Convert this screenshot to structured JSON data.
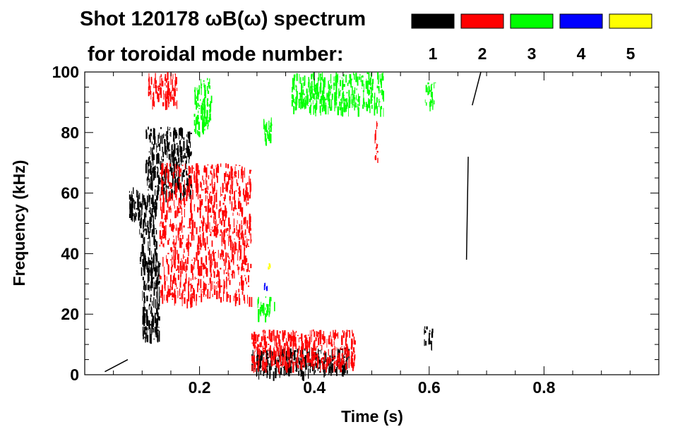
{
  "chart_data": {
    "type": "scatter",
    "title_line1": "Shot 120178 ωB(ω) spectrum",
    "title_line2": "for toroidal mode number:",
    "xlabel": "Time (s)",
    "ylabel": "Frequency (kHz)",
    "xlim": [
      0.0,
      1.0
    ],
    "ylim": [
      0,
      100
    ],
    "xticks": [
      {
        "value": 0.2,
        "label": "0.2"
      },
      {
        "value": 0.4,
        "label": "0.4"
      },
      {
        "value": 0.6,
        "label": "0.6"
      },
      {
        "value": 0.8,
        "label": "0.8"
      }
    ],
    "yticks": [
      {
        "value": 0,
        "label": "0"
      },
      {
        "value": 20,
        "label": "20"
      },
      {
        "value": 40,
        "label": "40"
      },
      {
        "value": 60,
        "label": "60"
      },
      {
        "value": 80,
        "label": "80"
      },
      {
        "value": 100,
        "label": "100"
      }
    ],
    "legend_placement": "top-right",
    "series": [
      {
        "name": "1",
        "color": "#000000",
        "regions": [
          {
            "x": [
              0.075,
              0.1
            ],
            "y": [
              52,
              62
            ]
          },
          {
            "x": [
              0.095,
              0.125
            ],
            "y": [
              35,
              60
            ]
          },
          {
            "x": [
              0.105,
              0.185
            ],
            "y": [
              60,
              82
            ]
          },
          {
            "x": [
              0.1,
              0.13
            ],
            "y": [
              12,
              40
            ]
          },
          {
            "x": [
              0.29,
              0.46
            ],
            "y": [
              1,
              9
            ]
          },
          {
            "x": [
              0.59,
              0.605
            ],
            "y": [
              10,
              16
            ]
          }
        ],
        "traces": [
          {
            "x": [
              0.665,
              0.668
            ],
            "y": [
              38,
              72
            ]
          },
          {
            "x": [
              0.675,
              0.69
            ],
            "y": [
              89,
              100
            ]
          },
          {
            "x": [
              0.035,
              0.075
            ],
            "y": [
              1,
              5
            ]
          }
        ]
      },
      {
        "name": "2",
        "color": "#ff0000",
        "regions": [
          {
            "x": [
              0.11,
              0.16
            ],
            "y": [
              90,
              100
            ]
          },
          {
            "x": [
              0.13,
              0.29
            ],
            "y": [
              25,
              70
            ]
          },
          {
            "x": [
              0.29,
              0.47
            ],
            "y": [
              3,
              15
            ]
          },
          {
            "x": [
              0.505,
              0.51
            ],
            "y": [
              70,
              85
            ]
          }
        ],
        "traces": []
      },
      {
        "name": "3",
        "color": "#00ff00",
        "regions": [
          {
            "x": [
              0.19,
              0.22
            ],
            "y": [
              80,
              98
            ]
          },
          {
            "x": [
              0.31,
              0.33
            ],
            "y": [
              78,
              85
            ]
          },
          {
            "x": [
              0.36,
              0.52
            ],
            "y": [
              88,
              100
            ]
          },
          {
            "x": [
              0.3,
              0.33
            ],
            "y": [
              20,
              26
            ]
          },
          {
            "x": [
              0.59,
              0.61
            ],
            "y": [
              90,
              97
            ]
          }
        ],
        "traces": []
      },
      {
        "name": "4",
        "color": "#0000ff",
        "regions": [
          {
            "x": [
              0.312,
              0.318
            ],
            "y": [
              28,
              31
            ]
          }
        ],
        "traces": []
      },
      {
        "name": "5",
        "color": "#ffff00",
        "regions": [
          {
            "x": [
              0.318,
              0.322
            ],
            "y": [
              35,
              37
            ]
          }
        ],
        "traces": []
      }
    ]
  }
}
